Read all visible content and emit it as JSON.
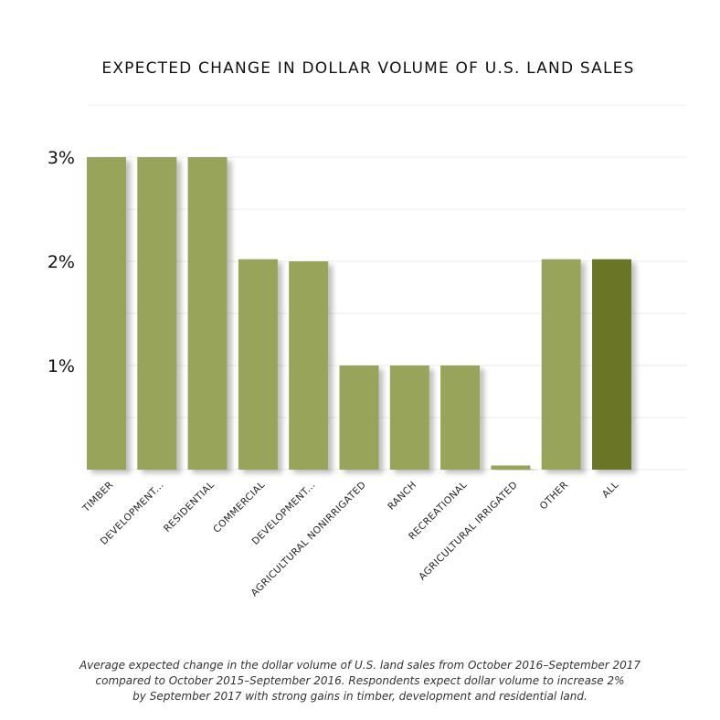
{
  "chart_data": {
    "type": "bar",
    "title": "EXPECTED CHANGE IN DOLLAR VOLUME OF U.S. LAND SALES",
    "categories": [
      "TIMBER",
      "DEVELOPMENT...",
      "RESIDENTIAL",
      "COMMERCIAL",
      "DEVELOPMENT...",
      "AGRICULTURAL NONIRRIGATED",
      "RANCH",
      "RECREATIONAL",
      "AGRICULTURAL IRRIGATED",
      "OTHER",
      "ALL"
    ],
    "values": [
      3.0,
      3.0,
      3.0,
      2.02,
      2.0,
      1.0,
      1.0,
      1.0,
      0.04,
      2.02,
      2.02
    ],
    "highlight_index": 10,
    "ytick_values": [
      1,
      2,
      3
    ],
    "ytick_labels": [
      "1%",
      "2%",
      "3%"
    ],
    "ylim": [
      0,
      3.5
    ],
    "xlabel": "",
    "ylabel": "",
    "grid": true,
    "colors": {
      "bar": "#97a45a",
      "highlight": "#6b7426",
      "grid": "#ececec"
    }
  },
  "caption": {
    "lines": [
      "Average expected change in the dollar volume of U.S. land sales from October 2016–September 2017",
      "compared to October 2015–September 2016. Respondents expect dollar volume to increase 2%",
      "by September 2017 with strong gains in timber, development and residential land."
    ]
  }
}
